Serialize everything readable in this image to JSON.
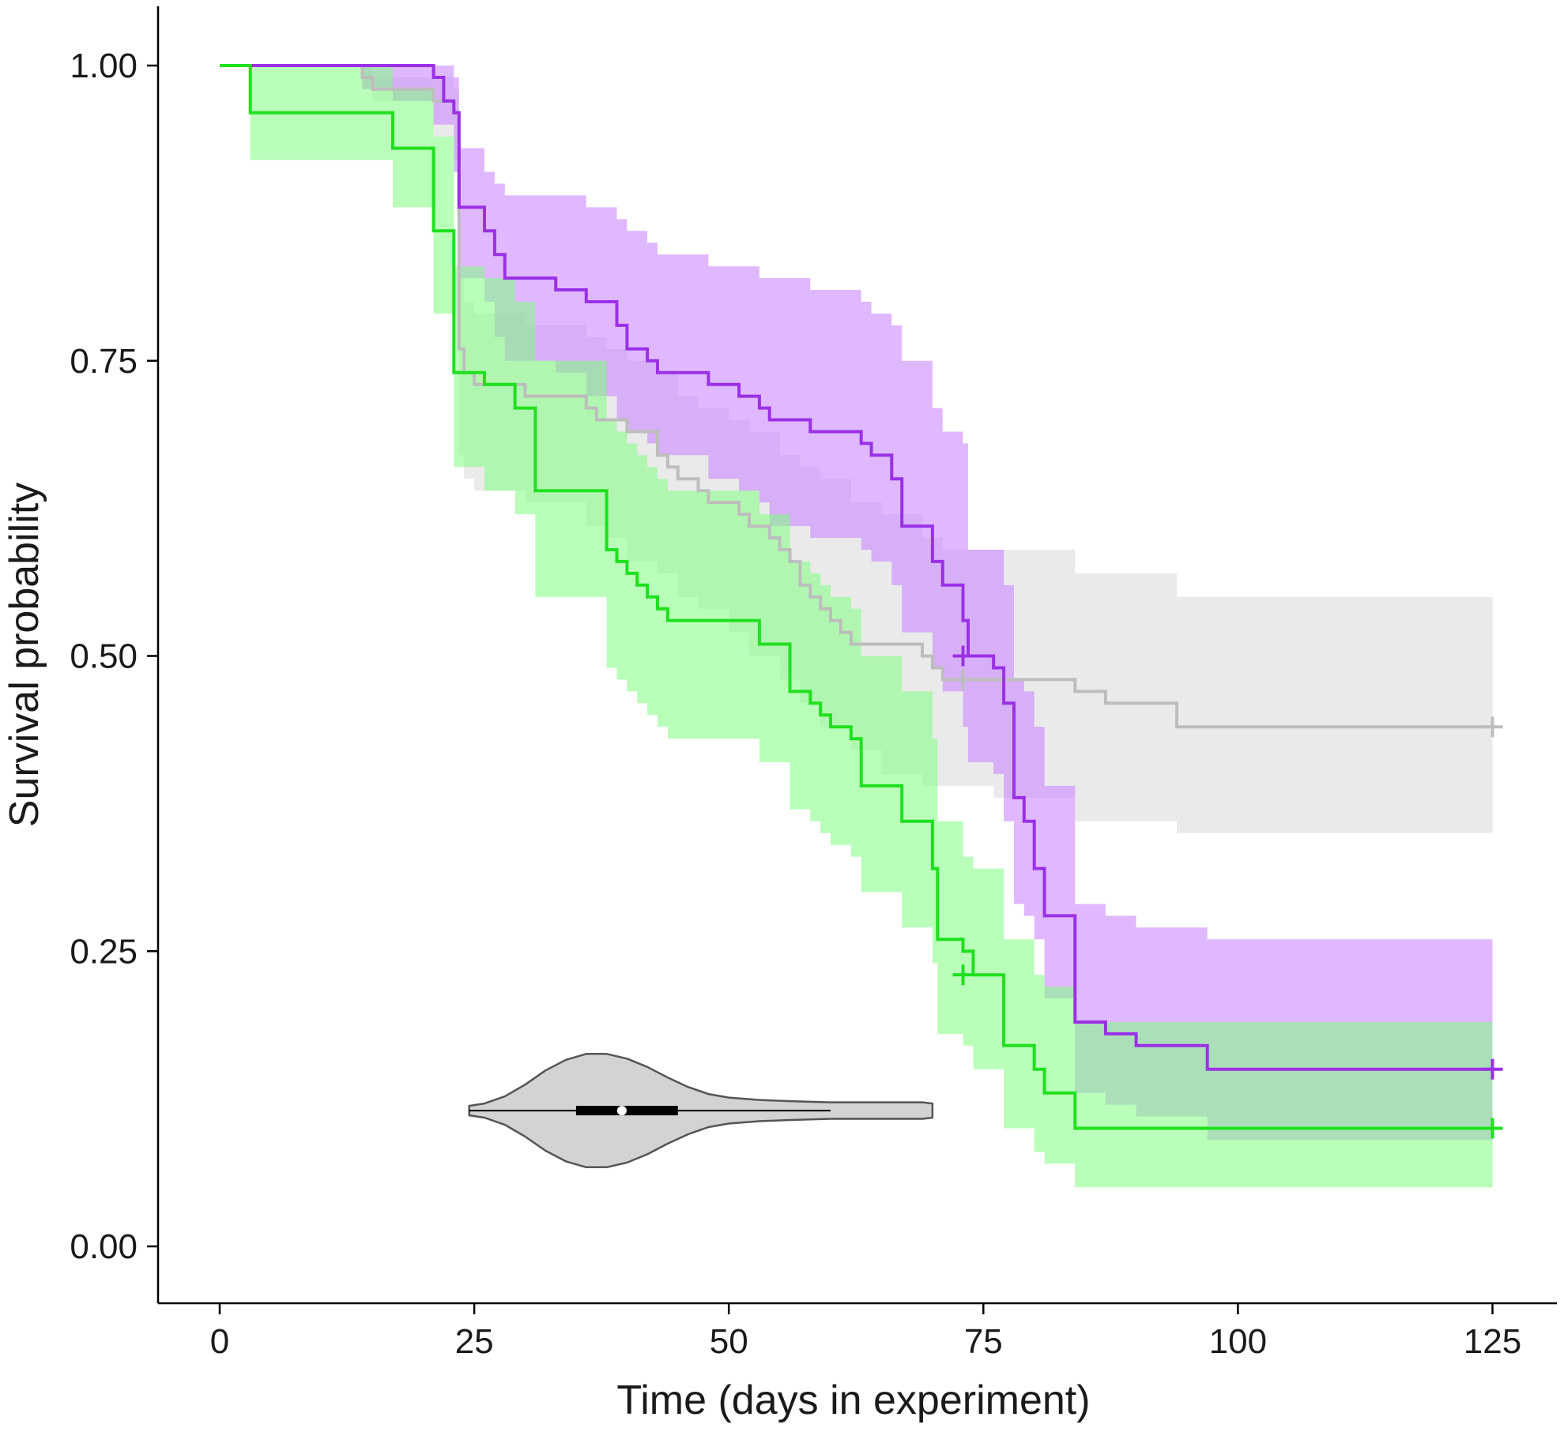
{
  "chart_data": {
    "type": "line",
    "subtype": "kaplan-meier survival curves with confidence bands",
    "xlabel": "Time (days in experiment)",
    "ylabel": "Survival probability",
    "xlim": [
      -3,
      130
    ],
    "ylim": [
      -0.05,
      1.05
    ],
    "x_ticks": [
      0,
      25,
      50,
      75,
      100,
      125
    ],
    "y_ticks": [
      0.0,
      0.25,
      0.5,
      0.75,
      1.0
    ],
    "x_tick_labels": [
      "0",
      "25",
      "50",
      "75",
      "100",
      "125"
    ],
    "y_tick_labels": [
      "0.00",
      "0.25",
      "0.50",
      "0.75",
      "1.00"
    ],
    "grid": false,
    "legend": "none",
    "series": [
      {
        "color": "#bdbdbd",
        "band_color": "#d9d9d9",
        "censor_markers": [
          [
            73,
            0.48
          ],
          [
            125,
            0.44
          ]
        ],
        "steps": [
          [
            0,
            1.0
          ],
          [
            14,
            0.99
          ],
          [
            15,
            0.98
          ],
          [
            21,
            0.97
          ],
          [
            23,
            0.96
          ],
          [
            23.5,
            0.76
          ],
          [
            24,
            0.74
          ],
          [
            25,
            0.73
          ],
          [
            30,
            0.72
          ],
          [
            36,
            0.71
          ],
          [
            37,
            0.7
          ],
          [
            40,
            0.69
          ],
          [
            43,
            0.67
          ],
          [
            44,
            0.66
          ],
          [
            45,
            0.65
          ],
          [
            47,
            0.64
          ],
          [
            48,
            0.63
          ],
          [
            51,
            0.62
          ],
          [
            52,
            0.61
          ],
          [
            54,
            0.6
          ],
          [
            55,
            0.59
          ],
          [
            56,
            0.58
          ],
          [
            57,
            0.56
          ],
          [
            58,
            0.55
          ],
          [
            59,
            0.54
          ],
          [
            60,
            0.53
          ],
          [
            61,
            0.52
          ],
          [
            62,
            0.51
          ],
          [
            69,
            0.5
          ],
          [
            70,
            0.49
          ],
          [
            71,
            0.48
          ],
          [
            84,
            0.47
          ],
          [
            87,
            0.46
          ],
          [
            94,
            0.44
          ],
          [
            125,
            0.44
          ]
        ],
        "band": [
          [
            0,
            1.0,
            1.0
          ],
          [
            14,
            0.98,
            1.0
          ],
          [
            15,
            0.97,
            0.99
          ],
          [
            21,
            0.94,
            0.99
          ],
          [
            23,
            0.92,
            0.98
          ],
          [
            23.5,
            0.67,
            0.82
          ],
          [
            24,
            0.65,
            0.8
          ],
          [
            25,
            0.64,
            0.79
          ],
          [
            30,
            0.63,
            0.78
          ],
          [
            36,
            0.61,
            0.77
          ],
          [
            38,
            0.6,
            0.76
          ],
          [
            40,
            0.58,
            0.75
          ],
          [
            43,
            0.57,
            0.74
          ],
          [
            45,
            0.55,
            0.72
          ],
          [
            47,
            0.54,
            0.71
          ],
          [
            50,
            0.52,
            0.7
          ],
          [
            52,
            0.5,
            0.69
          ],
          [
            55,
            0.48,
            0.67
          ],
          [
            57,
            0.46,
            0.66
          ],
          [
            59,
            0.44,
            0.65
          ],
          [
            62,
            0.42,
            0.63
          ],
          [
            65,
            0.4,
            0.62
          ],
          [
            69,
            0.39,
            0.6
          ],
          [
            71,
            0.39,
            0.59
          ],
          [
            76,
            0.38,
            0.59
          ],
          [
            84,
            0.36,
            0.57
          ],
          [
            87,
            0.36,
            0.57
          ],
          [
            94,
            0.35,
            0.55
          ],
          [
            125,
            0.35,
            0.55
          ]
        ]
      },
      {
        "color": "#9b30e6",
        "band_color": "#c77dff",
        "censor_markers": [
          [
            73,
            0.5
          ],
          [
            125,
            0.15
          ]
        ],
        "steps": [
          [
            0,
            1.0
          ],
          [
            21,
            0.99
          ],
          [
            22,
            0.97
          ],
          [
            23,
            0.96
          ],
          [
            23.5,
            0.88
          ],
          [
            26,
            0.86
          ],
          [
            27,
            0.84
          ],
          [
            28,
            0.82
          ],
          [
            33,
            0.81
          ],
          [
            36,
            0.8
          ],
          [
            39,
            0.78
          ],
          [
            40,
            0.76
          ],
          [
            42,
            0.75
          ],
          [
            43,
            0.74
          ],
          [
            48,
            0.73
          ],
          [
            51,
            0.72
          ],
          [
            53,
            0.71
          ],
          [
            54,
            0.7
          ],
          [
            58,
            0.69
          ],
          [
            63,
            0.68
          ],
          [
            64,
            0.67
          ],
          [
            66,
            0.65
          ],
          [
            67,
            0.61
          ],
          [
            70,
            0.58
          ],
          [
            71,
            0.56
          ],
          [
            73,
            0.53
          ],
          [
            73.5,
            0.5
          ],
          [
            76,
            0.49
          ],
          [
            77,
            0.46
          ],
          [
            78,
            0.38
          ],
          [
            79,
            0.36
          ],
          [
            80,
            0.32
          ],
          [
            81,
            0.28
          ],
          [
            84,
            0.19
          ],
          [
            87,
            0.18
          ],
          [
            90,
            0.17
          ],
          [
            97,
            0.15
          ],
          [
            125,
            0.15
          ]
        ],
        "band": [
          [
            0,
            1.0,
            1.0
          ],
          [
            14,
            0.98,
            1.0
          ],
          [
            17,
            0.97,
            1.0
          ],
          [
            21,
            0.95,
            1.0
          ],
          [
            23,
            0.91,
            0.99
          ],
          [
            23.5,
            0.82,
            0.93
          ],
          [
            26,
            0.8,
            0.91
          ],
          [
            27,
            0.77,
            0.9
          ],
          [
            28,
            0.75,
            0.89
          ],
          [
            33,
            0.74,
            0.89
          ],
          [
            36,
            0.72,
            0.88
          ],
          [
            39,
            0.7,
            0.87
          ],
          [
            40,
            0.69,
            0.86
          ],
          [
            42,
            0.68,
            0.85
          ],
          [
            43,
            0.67,
            0.84
          ],
          [
            48,
            0.65,
            0.83
          ],
          [
            51,
            0.64,
            0.83
          ],
          [
            53,
            0.63,
            0.82
          ],
          [
            54,
            0.61,
            0.82
          ],
          [
            58,
            0.6,
            0.81
          ],
          [
            63,
            0.59,
            0.8
          ],
          [
            64,
            0.58,
            0.79
          ],
          [
            66,
            0.56,
            0.78
          ],
          [
            67,
            0.52,
            0.75
          ],
          [
            70,
            0.49,
            0.71
          ],
          [
            71,
            0.47,
            0.69
          ],
          [
            73,
            0.44,
            0.68
          ],
          [
            73.5,
            0.41,
            0.59
          ],
          [
            76,
            0.4,
            0.59
          ],
          [
            77,
            0.36,
            0.56
          ],
          [
            78,
            0.29,
            0.48
          ],
          [
            79,
            0.28,
            0.47
          ],
          [
            80,
            0.26,
            0.44
          ],
          [
            81,
            0.21,
            0.39
          ],
          [
            84,
            0.13,
            0.29
          ],
          [
            87,
            0.12,
            0.28
          ],
          [
            90,
            0.11,
            0.27
          ],
          [
            97,
            0.09,
            0.26
          ],
          [
            125,
            0.09,
            0.26
          ]
        ]
      },
      {
        "color": "#1fe01f",
        "band_color": "#80ff80",
        "censor_markers": [
          [
            73,
            0.23
          ],
          [
            125,
            0.1
          ]
        ],
        "steps": [
          [
            0,
            1.0
          ],
          [
            3,
            0.96
          ],
          [
            17,
            0.93
          ],
          [
            21,
            0.86
          ],
          [
            23,
            0.74
          ],
          [
            26,
            0.73
          ],
          [
            29,
            0.71
          ],
          [
            31,
            0.64
          ],
          [
            38,
            0.59
          ],
          [
            39,
            0.58
          ],
          [
            40,
            0.57
          ],
          [
            41,
            0.56
          ],
          [
            42,
            0.55
          ],
          [
            43,
            0.54
          ],
          [
            44,
            0.53
          ],
          [
            50,
            0.53
          ],
          [
            53,
            0.51
          ],
          [
            56,
            0.47
          ],
          [
            58,
            0.46
          ],
          [
            59,
            0.45
          ],
          [
            60,
            0.44
          ],
          [
            62,
            0.43
          ],
          [
            63,
            0.39
          ],
          [
            67,
            0.36
          ],
          [
            70,
            0.32
          ],
          [
            70.5,
            0.26
          ],
          [
            73,
            0.25
          ],
          [
            74,
            0.23
          ],
          [
            77,
            0.17
          ],
          [
            80,
            0.15
          ],
          [
            81,
            0.13
          ],
          [
            84,
            0.1
          ],
          [
            125,
            0.1
          ]
        ],
        "band": [
          [
            0,
            1.0,
            1.0
          ],
          [
            3,
            0.92,
            1.0
          ],
          [
            17,
            0.88,
            0.98
          ],
          [
            21,
            0.79,
            0.94
          ],
          [
            23,
            0.66,
            0.83
          ],
          [
            26,
            0.64,
            0.82
          ],
          [
            29,
            0.62,
            0.8
          ],
          [
            31,
            0.55,
            0.75
          ],
          [
            38,
            0.49,
            0.7
          ],
          [
            39,
            0.48,
            0.69
          ],
          [
            40,
            0.47,
            0.68
          ],
          [
            41,
            0.46,
            0.67
          ],
          [
            42,
            0.45,
            0.66
          ],
          [
            43,
            0.44,
            0.65
          ],
          [
            44,
            0.43,
            0.64
          ],
          [
            50,
            0.43,
            0.64
          ],
          [
            53,
            0.41,
            0.62
          ],
          [
            56,
            0.37,
            0.58
          ],
          [
            58,
            0.36,
            0.57
          ],
          [
            59,
            0.35,
            0.56
          ],
          [
            60,
            0.34,
            0.55
          ],
          [
            62,
            0.33,
            0.54
          ],
          [
            63,
            0.3,
            0.5
          ],
          [
            67,
            0.27,
            0.47
          ],
          [
            70,
            0.24,
            0.43
          ],
          [
            70.5,
            0.18,
            0.36
          ],
          [
            73,
            0.17,
            0.33
          ],
          [
            74,
            0.15,
            0.32
          ],
          [
            77,
            0.1,
            0.26
          ],
          [
            80,
            0.08,
            0.23
          ],
          [
            81,
            0.07,
            0.22
          ],
          [
            84,
            0.05,
            0.19
          ],
          [
            125,
            0.05,
            0.19
          ]
        ]
      }
    ],
    "inset_violin": {
      "x_range": [
        24.5,
        70
      ],
      "y_center": 0.115,
      "median": 39.5,
      "q1": 35,
      "q3": 45,
      "whisker_min": 24.5,
      "whisker_max": 60,
      "profile": [
        [
          24.5,
          0.004
        ],
        [
          26,
          0.006
        ],
        [
          28,
          0.012
        ],
        [
          30,
          0.022
        ],
        [
          32,
          0.034
        ],
        [
          34,
          0.043
        ],
        [
          36,
          0.048
        ],
        [
          38,
          0.048
        ],
        [
          40,
          0.044
        ],
        [
          42,
          0.037
        ],
        [
          44,
          0.028
        ],
        [
          46,
          0.02
        ],
        [
          48,
          0.014
        ],
        [
          50,
          0.011
        ],
        [
          53,
          0.009
        ],
        [
          56,
          0.008
        ],
        [
          60,
          0.007
        ],
        [
          65,
          0.007
        ],
        [
          69,
          0.007
        ],
        [
          70,
          0.006
        ]
      ],
      "fill": "#d3d3d3",
      "stroke": "#555555"
    }
  }
}
